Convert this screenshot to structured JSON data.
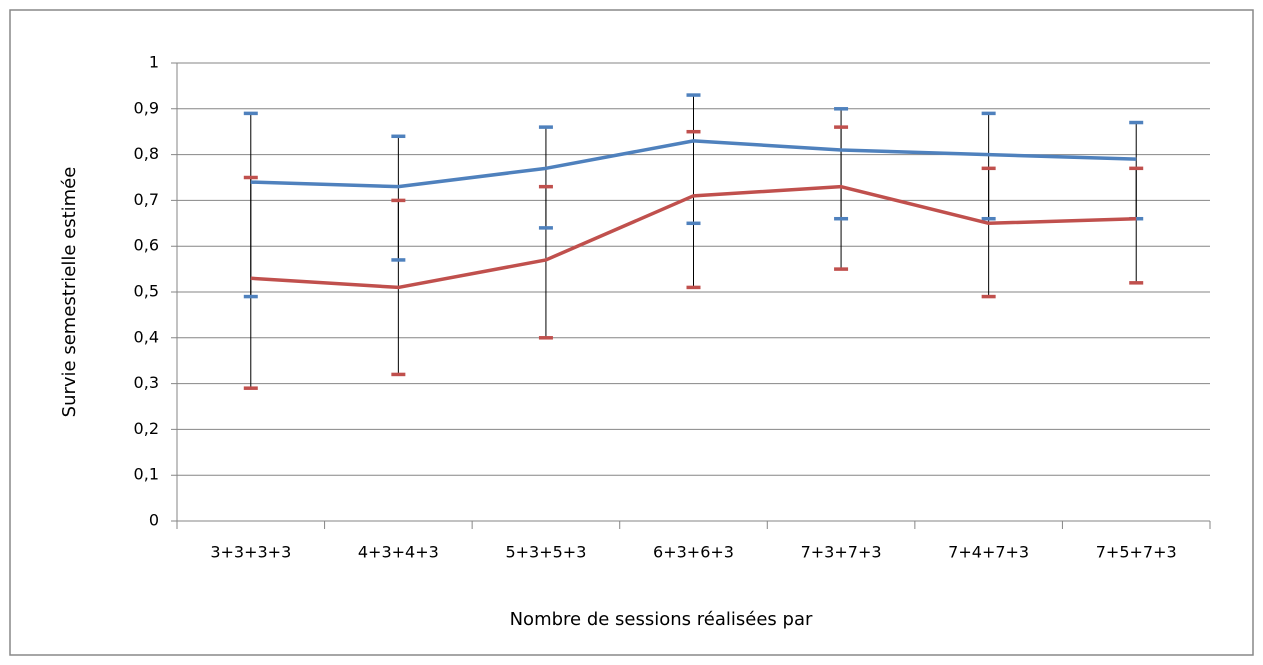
{
  "chart_data": {
    "type": "line",
    "y_label": "Survie semestrielle estimée",
    "x_label": "Nombre de sessions réalisées par",
    "categories": [
      "3+3+3+3",
      "4+3+4+3",
      "5+3+5+3",
      "6+3+6+3",
      "7+3+7+3",
      "7+4+7+3",
      "7+5+7+3"
    ],
    "series": [
      {
        "color": "#4f81bd",
        "values": [
          0.74,
          0.73,
          0.77,
          0.83,
          0.81,
          0.8,
          0.79
        ],
        "lower": [
          0.49,
          0.57,
          0.64,
          0.65,
          0.66,
          0.66,
          0.66
        ],
        "upper": [
          0.89,
          0.84,
          0.86,
          0.93,
          0.9,
          0.89,
          0.87
        ]
      },
      {
        "color": "#c0504d",
        "values": [
          0.53,
          0.51,
          0.57,
          0.71,
          0.73,
          0.65,
          0.66
        ],
        "lower": [
          0.29,
          0.32,
          0.4,
          0.51,
          0.55,
          0.49,
          0.52
        ],
        "upper": [
          0.75,
          0.7,
          0.73,
          0.85,
          0.86,
          0.77,
          0.77
        ]
      }
    ],
    "ylim": [
      0,
      1
    ],
    "yticks": [
      0,
      {
        "value": 0.1,
        "label": "0,1"
      },
      {
        "value": 0.2,
        "label": "0,2"
      },
      {
        "value": 0.3,
        "label": "0,3"
      },
      {
        "value": 0.4,
        "label": "0,4"
      },
      {
        "value": 0.5,
        "label": "0,5"
      },
      {
        "value": 0.6,
        "label": "0,6"
      },
      {
        "value": 0.7,
        "label": "0,7"
      },
      {
        "value": 0.8,
        "label": "0,8"
      },
      {
        "value": 0.9,
        "label": "0,9"
      },
      1
    ],
    "grid": true
  }
}
